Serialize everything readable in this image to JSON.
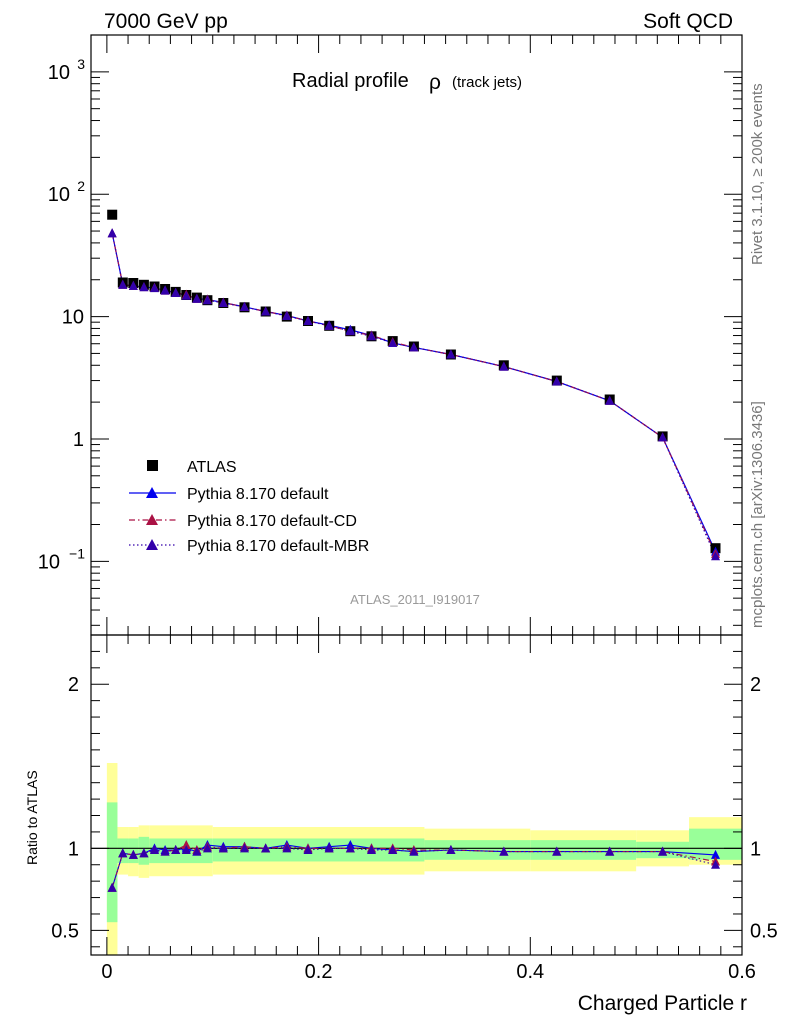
{
  "header": {
    "energy": "7000 GeV pp",
    "category": "Soft QCD"
  },
  "side_labels": {
    "rivet": "Rivet 3.1.10, ≥ 200k events",
    "site": "mcplots.cern.ch [arXiv:1306.3436]"
  },
  "chart_data": {
    "type": "line",
    "title": "Radial profile",
    "title_symbol": "ρ",
    "title_suffix": "(track jets)",
    "analysis_id": "ATLAS_2011_I919017",
    "xlabel": "Charged Particle r",
    "xlim": [
      -0.015,
      0.6
    ],
    "x_ticks": [
      "0",
      "0.2",
      "0.4",
      "0.6"
    ],
    "main": {
      "yscale": "log",
      "ylim": [
        0.025,
        2000
      ],
      "y_tick_labels": [
        {
          "value": 1000,
          "base": "10",
          "exp": "3"
        },
        {
          "value": 100,
          "base": "10",
          "exp": "2"
        },
        {
          "value": 10,
          "base": "10",
          "exp": ""
        },
        {
          "value": 1,
          "base": "1",
          "exp": ""
        },
        {
          "value": 0.1,
          "base": "10",
          "exp": "−1"
        }
      ],
      "x": [
        0.005,
        0.015,
        0.025,
        0.035,
        0.045,
        0.055,
        0.065,
        0.075,
        0.085,
        0.095,
        0.11,
        0.13,
        0.15,
        0.17,
        0.19,
        0.21,
        0.23,
        0.25,
        0.27,
        0.29,
        0.325,
        0.375,
        0.425,
        0.475,
        0.525,
        0.575
      ],
      "series": [
        {
          "name": "ATLAS",
          "style": "data",
          "values": [
            68,
            19,
            18.8,
            18.2,
            17.6,
            16.8,
            15.9,
            15.0,
            14.3,
            13.6,
            12.9,
            11.9,
            11.0,
            10.0,
            9.2,
            8.4,
            7.6,
            6.9,
            6.3,
            5.7,
            4.9,
            4.0,
            3.0,
            2.1,
            1.05,
            0.128
          ]
        },
        {
          "name": "Pythia 8.170 default",
          "style": "solid",
          "color": "#0000ee",
          "values": [
            48,
            18.2,
            17.8,
            17.4,
            17.2,
            16.4,
            15.7,
            14.9,
            14.0,
            13.8,
            13.0,
            12.0,
            11.0,
            10.2,
            9.2,
            8.5,
            7.8,
            7.0,
            6.1,
            5.6,
            4.9,
            3.9,
            2.95,
            2.05,
            1.03,
            0.12
          ]
        },
        {
          "name": "Pythia 8.170 default-CD",
          "style": "dashdot",
          "color": "#aa1144",
          "values": [
            48,
            18.2,
            17.8,
            17.4,
            17.2,
            16.3,
            15.6,
            15.1,
            14.0,
            13.8,
            13.0,
            12.0,
            11.0,
            10.2,
            9.2,
            8.4,
            7.6,
            7.0,
            6.2,
            5.6,
            4.9,
            3.9,
            2.95,
            2.05,
            1.03,
            0.115
          ]
        },
        {
          "name": "Pythia 8.170 default-MBR",
          "style": "dotted",
          "color": "#3300aa",
          "values": [
            48,
            18.2,
            17.8,
            17.4,
            17.1,
            16.3,
            15.6,
            14.8,
            14.0,
            13.6,
            12.9,
            12.0,
            11.0,
            10.1,
            9.2,
            8.4,
            7.6,
            6.9,
            6.1,
            5.6,
            4.9,
            3.9,
            2.95,
            2.05,
            1.03,
            0.11
          ]
        }
      ]
    },
    "ratio": {
      "ylabel": "Ratio to ATLAS",
      "ylim": [
        0.35,
        2.3
      ],
      "y_tick_labels": [
        "0.5",
        "1",
        "2"
      ],
      "y_tick_values": [
        0.5,
        1,
        2
      ],
      "band_bins": [
        {
          "x": [
            0.0,
            0.01
          ],
          "inner": [
            0.55,
            1.28
          ],
          "outer": [
            0.35,
            1.52
          ]
        },
        {
          "x": [
            0.01,
            0.02
          ],
          "inner": [
            0.91,
            1.06
          ],
          "outer": [
            0.84,
            1.13
          ]
        },
        {
          "x": [
            0.02,
            0.03
          ],
          "inner": [
            0.91,
            1.06
          ],
          "outer": [
            0.83,
            1.13
          ]
        },
        {
          "x": [
            0.03,
            0.04
          ],
          "inner": [
            0.9,
            1.07
          ],
          "outer": [
            0.82,
            1.14
          ]
        },
        {
          "x": [
            0.04,
            0.1
          ],
          "inner": [
            0.91,
            1.06
          ],
          "outer": [
            0.83,
            1.14
          ]
        },
        {
          "x": [
            0.1,
            0.3
          ],
          "inner": [
            0.92,
            1.06
          ],
          "outer": [
            0.84,
            1.13
          ]
        },
        {
          "x": [
            0.3,
            0.4
          ],
          "inner": [
            0.93,
            1.05
          ],
          "outer": [
            0.86,
            1.12
          ]
        },
        {
          "x": [
            0.4,
            0.5
          ],
          "inner": [
            0.93,
            1.05
          ],
          "outer": [
            0.86,
            1.11
          ]
        },
        {
          "x": [
            0.5,
            0.55
          ],
          "inner": [
            0.94,
            1.04
          ],
          "outer": [
            0.89,
            1.11
          ]
        },
        {
          "x": [
            0.55,
            0.6
          ],
          "inner": [
            0.93,
            1.12
          ],
          "outer": [
            0.9,
            1.19
          ]
        }
      ],
      "inner_color": "#99ff99",
      "outer_color": "#ffff99",
      "series": [
        {
          "name": "Pythia 8.170 default",
          "values": [
            0.76,
            0.97,
            0.96,
            0.97,
            1.0,
            0.99,
            0.99,
            1.0,
            0.98,
            1.02,
            1.01,
            1.01,
            1.0,
            1.02,
            1.0,
            1.01,
            1.02,
            1.0,
            0.99,
            0.98,
            0.99,
            0.98,
            0.98,
            0.98,
            0.98,
            0.96
          ]
        },
        {
          "name": "Pythia 8.170 default-CD",
          "values": [
            0.76,
            0.97,
            0.96,
            0.97,
            0.99,
            0.98,
            0.99,
            1.02,
            0.99,
            1.01,
            1.0,
            1.01,
            1.0,
            1.01,
            1.0,
            1.0,
            1.0,
            1.0,
            1.0,
            0.99,
            0.99,
            0.98,
            0.98,
            0.98,
            0.98,
            0.92
          ]
        },
        {
          "name": "Pythia 8.170 default-MBR",
          "values": [
            0.76,
            0.97,
            0.96,
            0.97,
            0.99,
            0.98,
            0.99,
            0.99,
            0.98,
            1.0,
            1.0,
            1.0,
            1.0,
            1.0,
            0.99,
            1.0,
            1.0,
            0.99,
            0.99,
            0.98,
            0.99,
            0.98,
            0.98,
            0.98,
            0.98,
            0.9
          ]
        }
      ]
    },
    "legend_position": "center-left"
  }
}
